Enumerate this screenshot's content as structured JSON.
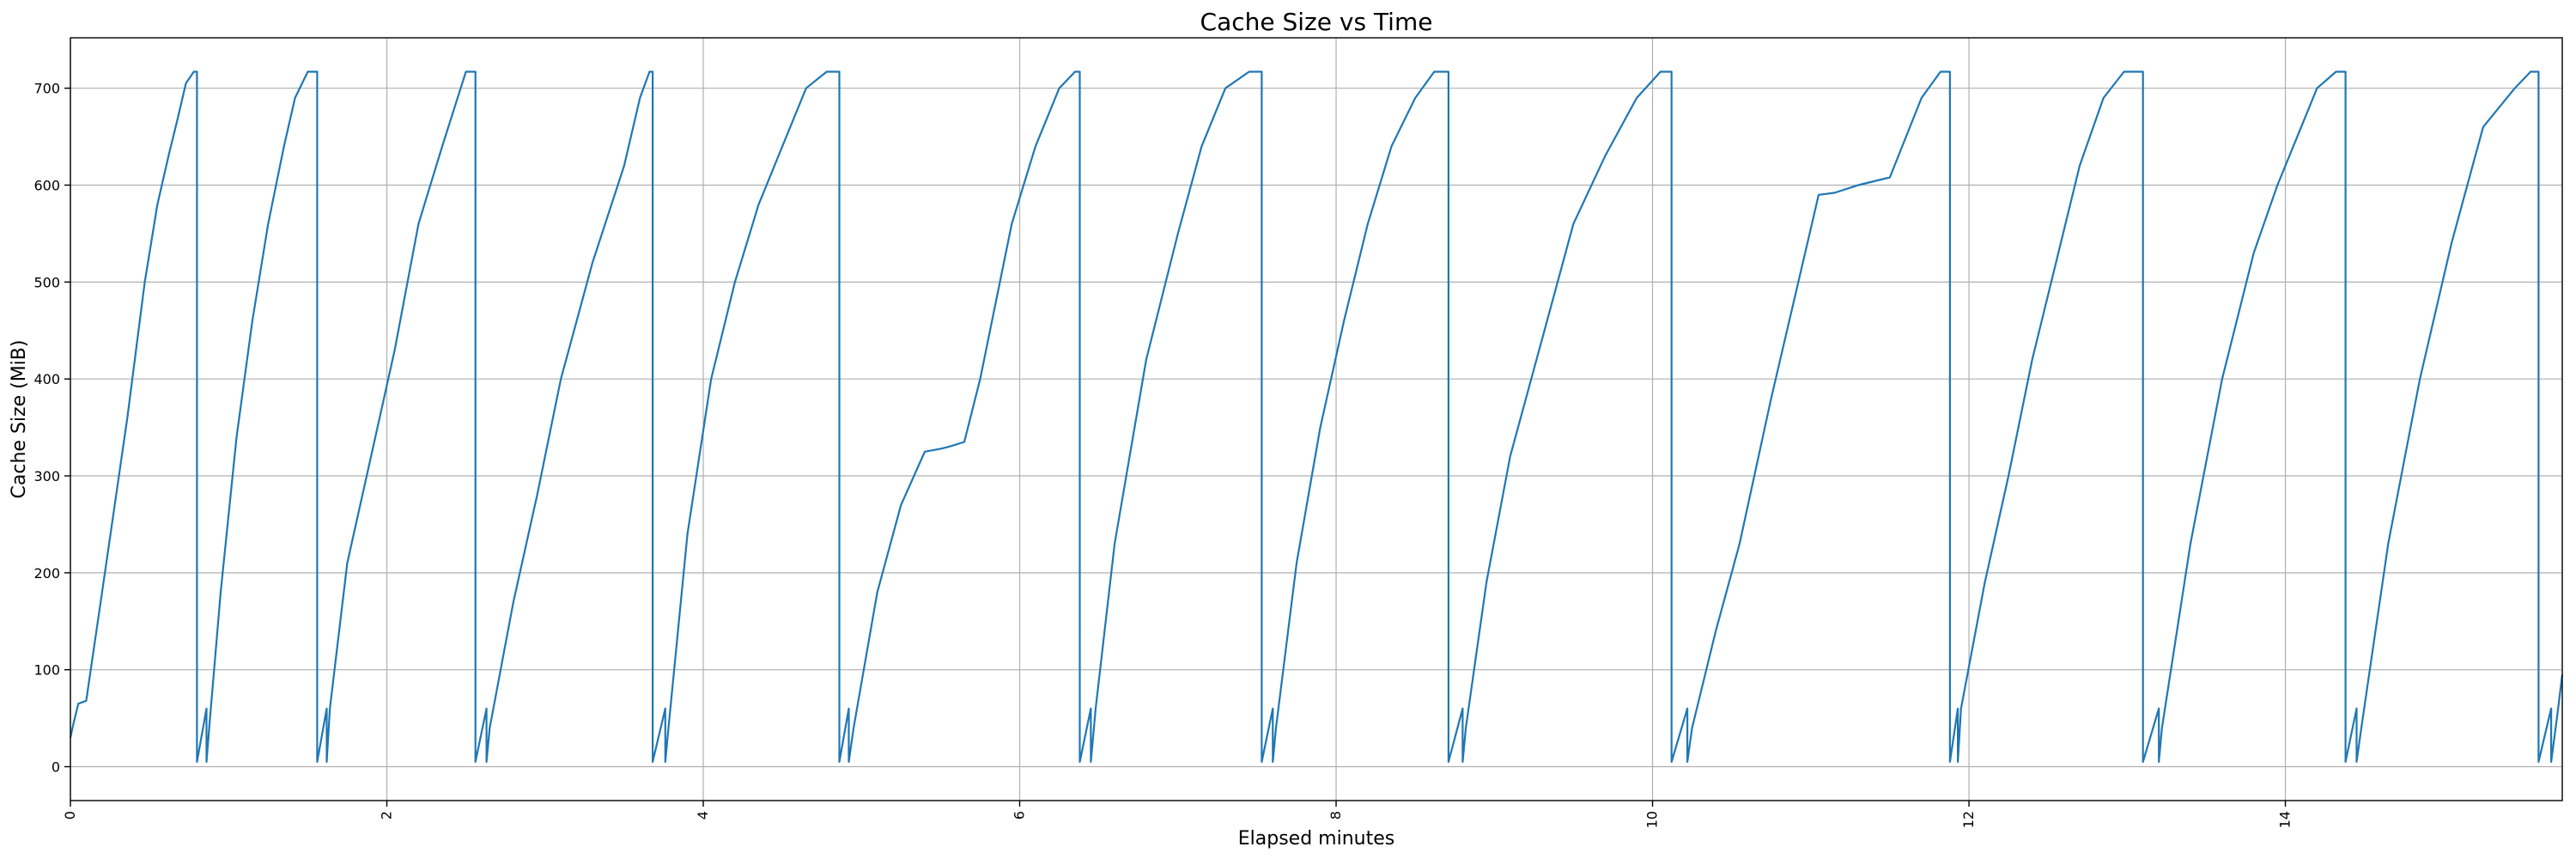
{
  "chart_data": {
    "type": "line",
    "title": "Cache Size vs Time",
    "xlabel": "Elapsed minutes",
    "ylabel": "Cache Size (MiB)",
    "xlim": [
      0,
      15.75
    ],
    "ylim": [
      -35,
      752
    ],
    "xticks": [
      0,
      2,
      4,
      6,
      8,
      10,
      12,
      14
    ],
    "xtick_labels": [
      "0",
      "2",
      "4",
      "6",
      "8",
      "10",
      "12",
      "14"
    ],
    "yticks": [
      0,
      100,
      200,
      300,
      400,
      500,
      600,
      700
    ],
    "ytick_labels": [
      "0",
      "100",
      "200",
      "300",
      "400",
      "500",
      "600",
      "700"
    ],
    "grid": true,
    "legend": "none",
    "series": [
      {
        "color": "#1f77b4",
        "x": [
          0.0,
          0.02,
          0.05,
          0.1,
          0.2,
          0.28,
          0.36,
          0.47,
          0.55,
          0.62,
          0.68,
          0.73,
          0.78,
          0.8,
          0.8,
          0.86,
          0.86,
          0.88,
          0.95,
          1.05,
          1.15,
          1.25,
          1.35,
          1.42,
          1.5,
          1.55,
          1.56,
          1.56,
          1.62,
          1.62,
          1.64,
          1.75,
          1.9,
          2.05,
          2.2,
          2.35,
          2.5,
          2.55,
          2.56,
          2.56,
          2.63,
          2.63,
          2.65,
          2.8,
          2.95,
          3.1,
          3.3,
          3.5,
          3.6,
          3.66,
          3.68,
          3.68,
          3.76,
          3.76,
          3.78,
          3.9,
          4.05,
          4.2,
          4.35,
          4.5,
          4.65,
          4.78,
          4.86,
          4.86,
          4.92,
          4.92,
          4.95,
          5.1,
          5.25,
          5.4,
          5.5,
          5.55,
          5.65,
          5.75,
          5.85,
          5.95,
          6.1,
          6.25,
          6.35,
          6.38,
          6.38,
          6.45,
          6.45,
          6.48,
          6.6,
          6.8,
          7.0,
          7.15,
          7.3,
          7.45,
          7.52,
          7.53,
          7.53,
          7.6,
          7.6,
          7.62,
          7.75,
          7.9,
          8.05,
          8.2,
          8.35,
          8.5,
          8.62,
          8.7,
          8.71,
          8.71,
          8.8,
          8.8,
          8.82,
          8.95,
          9.1,
          9.3,
          9.5,
          9.7,
          9.9,
          10.05,
          10.1,
          10.12,
          10.12,
          10.22,
          10.22,
          10.25,
          10.4,
          10.55,
          10.75,
          10.95,
          11.05,
          11.15,
          11.3,
          11.5,
          11.7,
          11.82,
          11.88,
          11.88,
          11.93,
          11.93,
          11.95,
          12.1,
          12.25,
          12.4,
          12.55,
          12.7,
          12.85,
          12.98,
          13.08,
          13.1,
          13.1,
          13.2,
          13.2,
          13.22,
          13.4,
          13.6,
          13.8,
          13.95,
          14.1,
          14.2,
          14.32,
          14.38,
          14.38,
          14.45,
          14.45,
          14.48,
          14.65,
          14.85,
          15.05,
          15.25,
          15.45,
          15.55,
          15.6,
          15.6,
          15.68,
          15.68,
          15.72,
          15.75
        ],
        "y": [
          30,
          45,
          65,
          68,
          180,
          270,
          360,
          500,
          580,
          630,
          670,
          705,
          717,
          717,
          5,
          60,
          5,
          45,
          180,
          340,
          460,
          560,
          640,
          690,
          717,
          717,
          717,
          5,
          60,
          5,
          60,
          210,
          320,
          430,
          560,
          640,
          717,
          717,
          717,
          5,
          60,
          5,
          40,
          170,
          280,
          400,
          520,
          620,
          690,
          717,
          717,
          5,
          60,
          5,
          40,
          240,
          400,
          500,
          580,
          640,
          700,
          717,
          717,
          5,
          60,
          5,
          40,
          180,
          270,
          325,
          328,
          330,
          335,
          400,
          480,
          560,
          640,
          700,
          717,
          717,
          5,
          60,
          5,
          60,
          230,
          420,
          550,
          640,
          700,
          717,
          717,
          717,
          5,
          60,
          5,
          40,
          210,
          350,
          460,
          560,
          640,
          690,
          717,
          717,
          717,
          5,
          60,
          5,
          40,
          190,
          320,
          440,
          560,
          630,
          690,
          717,
          717,
          717,
          5,
          60,
          5,
          40,
          140,
          230,
          380,
          520,
          590,
          592,
          600,
          608,
          690,
          717,
          717,
          5,
          60,
          5,
          60,
          190,
          300,
          420,
          520,
          620,
          690,
          717,
          717,
          717,
          5,
          60,
          5,
          40,
          230,
          400,
          530,
          600,
          660,
          700,
          717,
          717,
          5,
          60,
          5,
          40,
          230,
          400,
          540,
          660,
          700,
          717,
          717,
          5,
          60,
          5,
          55,
          95
        ]
      }
    ]
  }
}
